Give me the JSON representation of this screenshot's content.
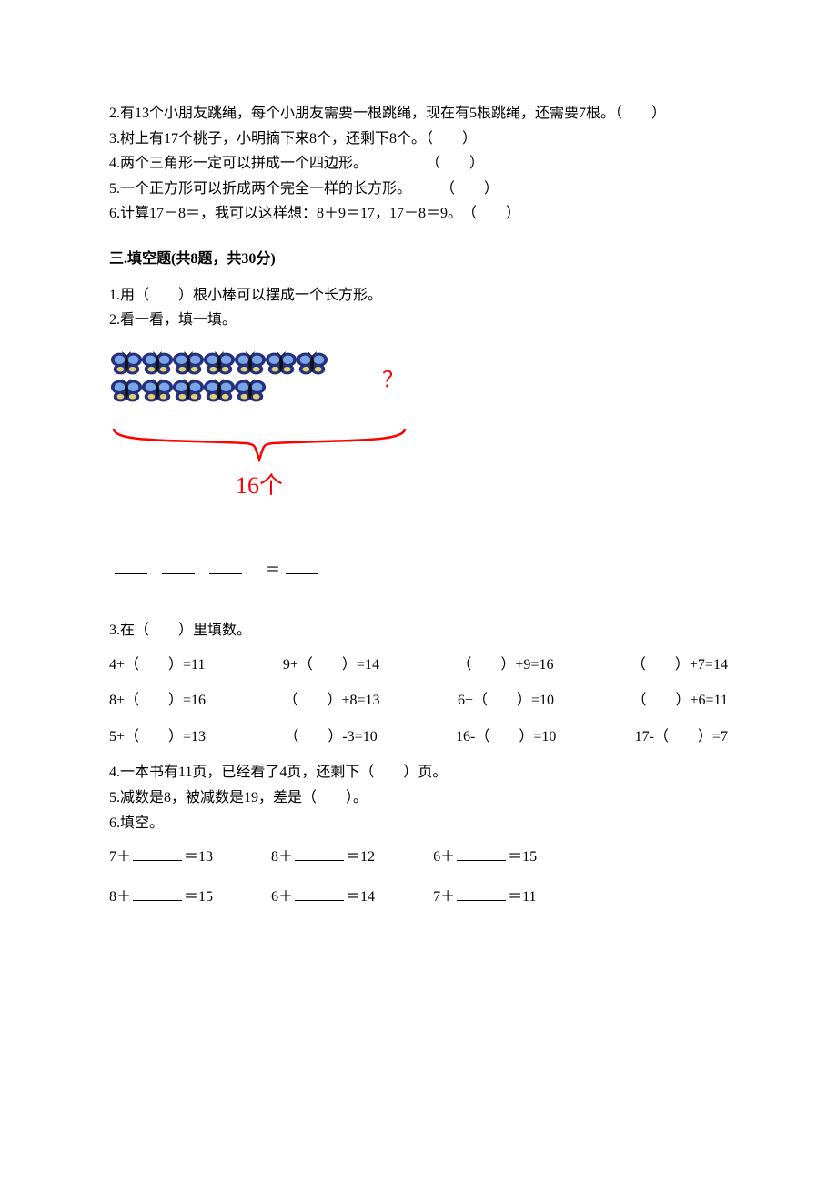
{
  "q2": "2.有13个小朋友跳绳，每个小朋友需要一根跳绳，现在有5根跳绳，还需要7根。（　　）",
  "q3": "3.树上有17个桃子，小明摘下来8个，还剩下8个。（　　）",
  "q4": "4.两个三角形一定可以拼成一个四边形。　　　　　（　　）",
  "q5": "5.一个正方形可以折成两个完全一样的长方形。　　　（　　）",
  "q6": "6.计算17－8＝，我可以这样想：8＋9＝17，17－8＝9。　（　　）",
  "section3_title": "三.填空题(共8题，共30分)",
  "s3_q1": "1.用（　　）根小棒可以摆成一个长方形。",
  "s3_q2": "2.看一看，填一填。",
  "butterflies": {
    "row1_count": 7,
    "row2_count": 5,
    "question_mark": "？",
    "total_label": "16个",
    "colors": {
      "wing_outer": "#25317e",
      "wing_inner": "#7aa6e8",
      "wing_highlight": "#e0d070",
      "body": "#111111",
      "bracket": "#ff0000",
      "qmark": "#ff0000"
    }
  },
  "fill_eq_equals": " ＝",
  "s3_q3": "3.在（　　）里填数。",
  "eq_set1": [
    [
      "4+（　　）=11",
      "9+（　　）=14",
      "（　　）+9=16",
      "（　　）+7=14"
    ],
    [
      "8+（　　）=16",
      "（　　）+8=13",
      "6+（　　）=10",
      "（　　）+6=11"
    ],
    [
      "5+（　　）=13",
      "（　　）-3=10",
      "16-（　　）=10",
      "17-（　　）=7"
    ]
  ],
  "s3_q4": "4.一本书有11页，已经看了4页，还剩下（　　）页。",
  "s3_q5": "5.减数是8，被减数是19，差是（　　）。",
  "s3_q6": "6.填空。",
  "eq_set2": [
    [
      [
        "7＋",
        "＝13"
      ],
      [
        "8＋",
        "＝12"
      ],
      [
        "6＋",
        "＝15"
      ]
    ],
    [
      [
        "8＋",
        "＝15"
      ],
      [
        "6＋",
        "＝14"
      ],
      [
        "7＋",
        "＝11"
      ]
    ]
  ]
}
